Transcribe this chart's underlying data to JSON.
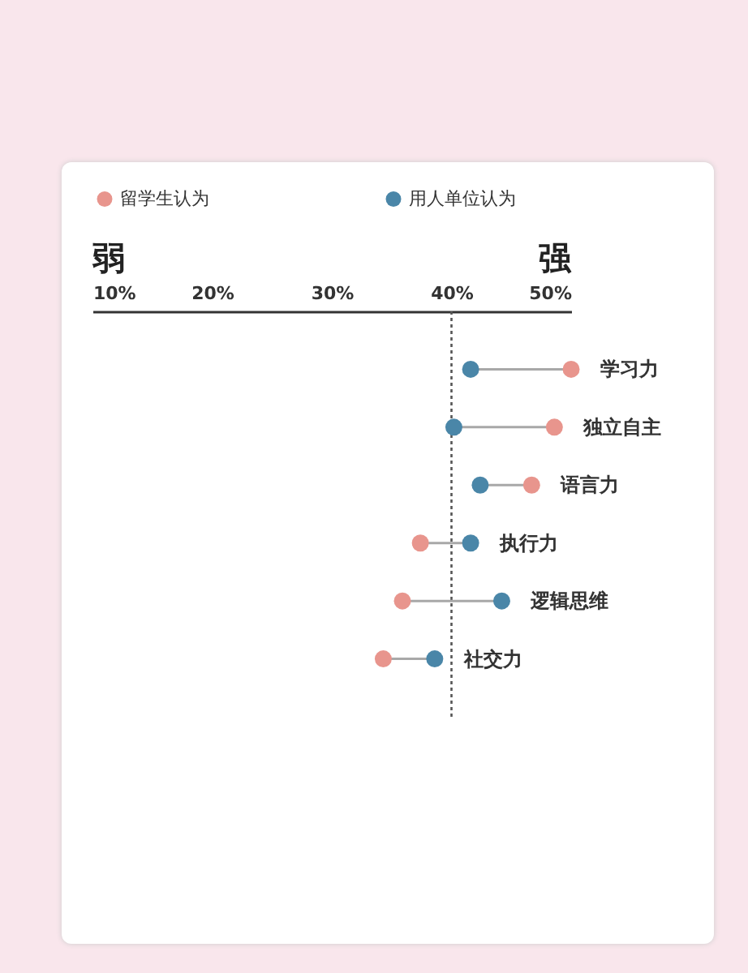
{
  "chart_data": {
    "type": "scatter",
    "orientation": "horizontal",
    "marker": "circle",
    "legend": "top",
    "grid": false,
    "categories": [
      "学习力",
      "独立自主",
      "语言力",
      "执行力",
      "逻辑思维",
      "社交力"
    ],
    "series": [
      {
        "name": "留学生认为",
        "color": "#e8958d",
        "values": [
          50.0,
          48.6,
          46.7,
          37.4,
          35.9,
          34.3
        ]
      },
      {
        "name": "用人单位认为",
        "color": "#4a86a8",
        "values": [
          41.6,
          40.2,
          42.4,
          41.6,
          44.2,
          38.6
        ]
      }
    ],
    "xlim": [
      10,
      50
    ],
    "xticks": [
      {
        "value": 10,
        "label": "10%"
      },
      {
        "value": 20,
        "label": "20%"
      },
      {
        "value": 30,
        "label": "30%"
      },
      {
        "value": 40,
        "label": "40%"
      },
      {
        "value": 50,
        "label": "50%"
      }
    ],
    "ref_lines": [
      {
        "axis": "x",
        "value": 40,
        "line_style": "dotted",
        "color": "#555555"
      }
    ],
    "annotations": [
      "弱",
      "强"
    ]
  }
}
